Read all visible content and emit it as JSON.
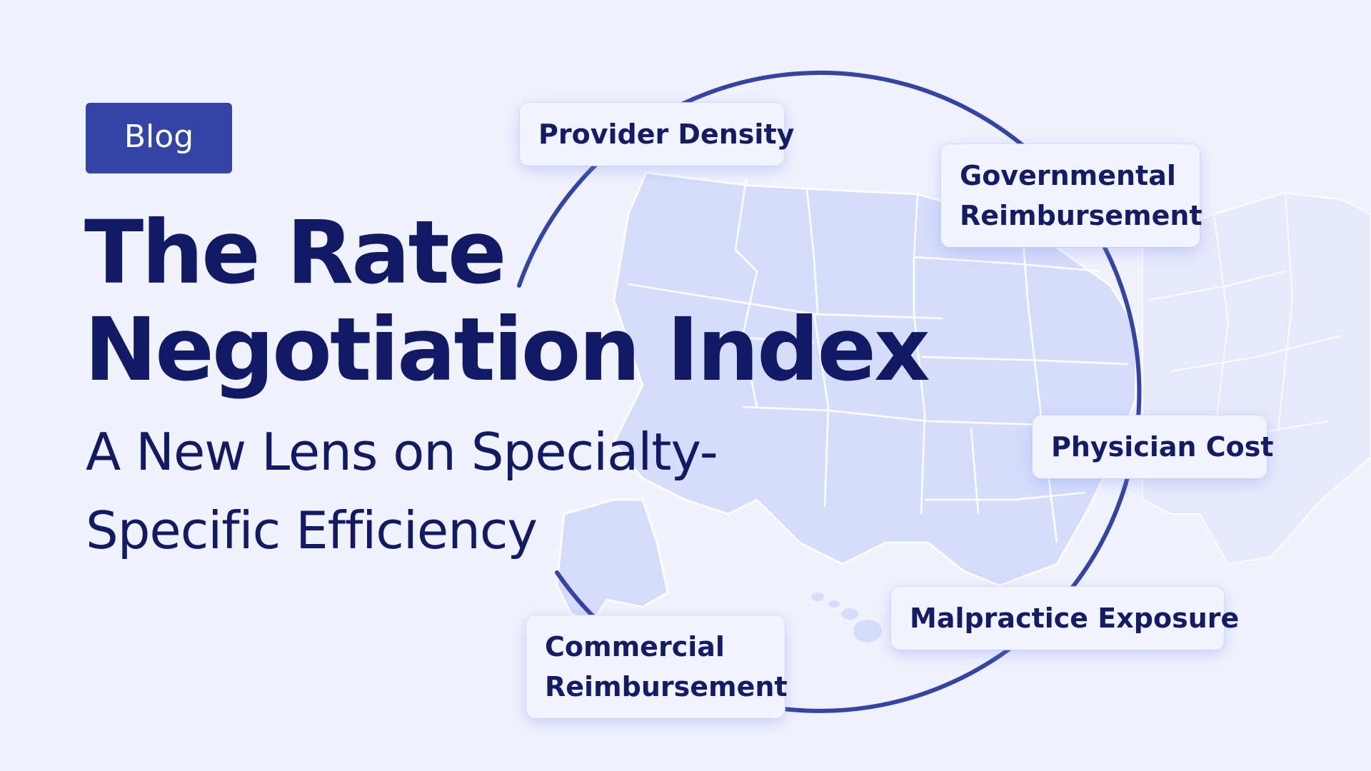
{
  "badge": {
    "label": "Blog"
  },
  "title": {
    "line1": "The Rate",
    "line2": "Negotiation Index"
  },
  "subtitle": {
    "line1": "A New Lens on Specialty-",
    "line2": "Specific Efficiency"
  },
  "labels": {
    "provider_density": {
      "line1": "Provider Density"
    },
    "governmental": {
      "line1": "Governmental",
      "line2": "Reimbursement"
    },
    "physician_cost": {
      "line1": "Physician Cost"
    },
    "malpractice": {
      "line1": "Malpractice Exposure"
    },
    "commercial": {
      "line1": "Commercial",
      "line2": "Reimbursement"
    }
  },
  "colors": {
    "background": "#f0f2fc",
    "accent": "#3343a6",
    "text": "#121a66",
    "map_fill": "#d6ddfb",
    "card_background": "#f2f4fe"
  }
}
